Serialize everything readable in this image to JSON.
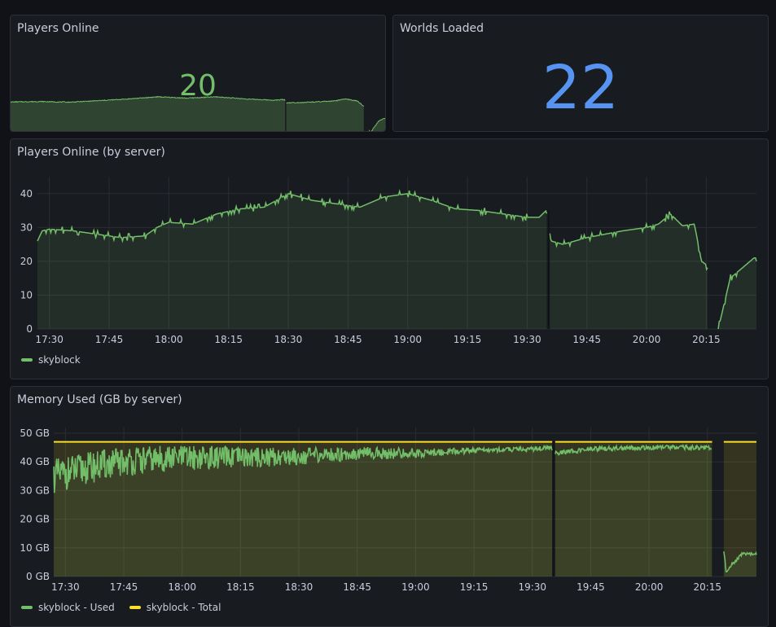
{
  "colors": {
    "green": "#73bf69",
    "green_fill": "#2f3d2f",
    "blue": "#5794f2",
    "yellow": "#fade2a",
    "olive_fill": "#3e3f2a"
  },
  "panels": {
    "players_online": {
      "title": "Players Online",
      "value": "20"
    },
    "worlds_loaded": {
      "title": "Worlds Loaded",
      "value": "22"
    },
    "players_by_server": {
      "title": "Players Online (by server)",
      "legend": [
        {
          "label": "skyblock",
          "color": "#73bf69"
        }
      ]
    },
    "memory_used": {
      "title": "Memory Used (GB by server)",
      "legend": [
        {
          "label": "skyblock - Used",
          "color": "#73bf69"
        },
        {
          "label": "skyblock - Total",
          "color": "#fade2a"
        }
      ]
    }
  },
  "chart_data": [
    {
      "type": "area",
      "title": "Players Online",
      "series": [
        {
          "name": "skyblock",
          "points": [
            [
              17.25,
              28
            ],
            [
              17.5,
              29
            ],
            [
              17.75,
              27.5
            ],
            [
              18.0,
              31
            ],
            [
              18.25,
              35
            ],
            [
              18.5,
              40
            ],
            [
              18.75,
              37
            ],
            [
              19.0,
              40
            ],
            [
              19.25,
              35
            ],
            [
              19.5,
              32
            ],
            [
              19.58,
              34
            ],
            [
              19.59,
              26
            ],
            [
              19.75,
              27
            ],
            [
              20.0,
              30
            ],
            [
              20.1,
              35
            ],
            [
              20.2,
              30
            ],
            [
              20.25,
              19
            ],
            [
              20.31,
              0
            ],
            [
              20.38,
              15
            ],
            [
              20.45,
              20
            ]
          ]
        }
      ]
    },
    {
      "type": "line",
      "title": "Players Online (by server)",
      "x_ticks": [
        "17:30",
        "17:45",
        "18:00",
        "18:15",
        "18:30",
        "18:45",
        "19:00",
        "19:15",
        "19:30",
        "19:45",
        "20:00",
        "20:15"
      ],
      "y_ticks": [
        "0",
        "10",
        "20",
        "30",
        "40"
      ],
      "ylim": [
        0,
        45
      ],
      "series": [
        {
          "name": "skyblock",
          "points": [
            [
              17.45,
              26
            ],
            [
              17.47,
              29
            ],
            [
              17.5,
              29.5
            ],
            [
              17.6,
              29
            ],
            [
              17.7,
              28
            ],
            [
              17.8,
              27
            ],
            [
              17.9,
              27.5
            ],
            [
              17.95,
              30
            ],
            [
              18.0,
              31.5
            ],
            [
              18.1,
              31
            ],
            [
              18.2,
              34
            ],
            [
              18.3,
              35.5
            ],
            [
              18.4,
              36
            ],
            [
              18.5,
              40
            ],
            [
              18.6,
              38
            ],
            [
              18.7,
              37
            ],
            [
              18.8,
              36
            ],
            [
              18.9,
              39
            ],
            [
              19.0,
              40
            ],
            [
              19.1,
              38
            ],
            [
              19.2,
              35.5
            ],
            [
              19.3,
              35
            ],
            [
              19.4,
              34
            ],
            [
              19.5,
              33
            ],
            [
              19.55,
              33
            ],
            [
              19.58,
              35
            ],
            [
              19.6,
              26
            ],
            [
              19.65,
              25
            ],
            [
              19.75,
              27
            ],
            [
              19.9,
              29
            ],
            [
              20.0,
              30
            ],
            [
              20.05,
              31
            ],
            [
              20.1,
              34
            ],
            [
              20.15,
              30.5
            ],
            [
              20.2,
              31
            ],
            [
              20.23,
              20
            ],
            [
              20.25,
              19
            ],
            [
              20.3,
              0
            ],
            [
              20.35,
              15
            ],
            [
              20.4,
              18
            ],
            [
              20.45,
              21
            ]
          ]
        }
      ]
    },
    {
      "type": "line",
      "title": "Memory Used (GB by server)",
      "x_ticks": [
        "17:30",
        "17:45",
        "18:00",
        "18:15",
        "18:30",
        "18:45",
        "19:00",
        "19:15",
        "19:30",
        "19:45",
        "20:00",
        "20:15"
      ],
      "y_ticks": [
        "0 GB",
        "10 GB",
        "20 GB",
        "30 GB",
        "40 GB",
        "50 GB"
      ],
      "ylim": [
        0,
        52
      ],
      "series": [
        {
          "name": "skyblock - Used",
          "points": [
            [
              17.45,
              35
            ],
            [
              17.6,
              38
            ],
            [
              17.75,
              40
            ],
            [
              17.9,
              41
            ],
            [
              18.0,
              41.5
            ],
            [
              18.25,
              41.5
            ],
            [
              18.5,
              42
            ],
            [
              18.75,
              43
            ],
            [
              19.0,
              43
            ],
            [
              19.25,
              44
            ],
            [
              19.5,
              44.5
            ],
            [
              19.58,
              45
            ],
            [
              19.6,
              43
            ],
            [
              19.75,
              44.5
            ],
            [
              20.0,
              45
            ],
            [
              20.25,
              45
            ],
            [
              20.27,
              44
            ],
            [
              20.33,
              2
            ],
            [
              20.4,
              8
            ],
            [
              20.46,
              8
            ]
          ]
        },
        {
          "name": "skyblock - Total",
          "points": [
            [
              17.45,
              47
            ],
            [
              19.58,
              47
            ],
            [
              19.6,
              47
            ],
            [
              20.27,
              47
            ],
            [
              20.33,
              47
            ],
            [
              20.46,
              47
            ]
          ]
        }
      ]
    }
  ]
}
